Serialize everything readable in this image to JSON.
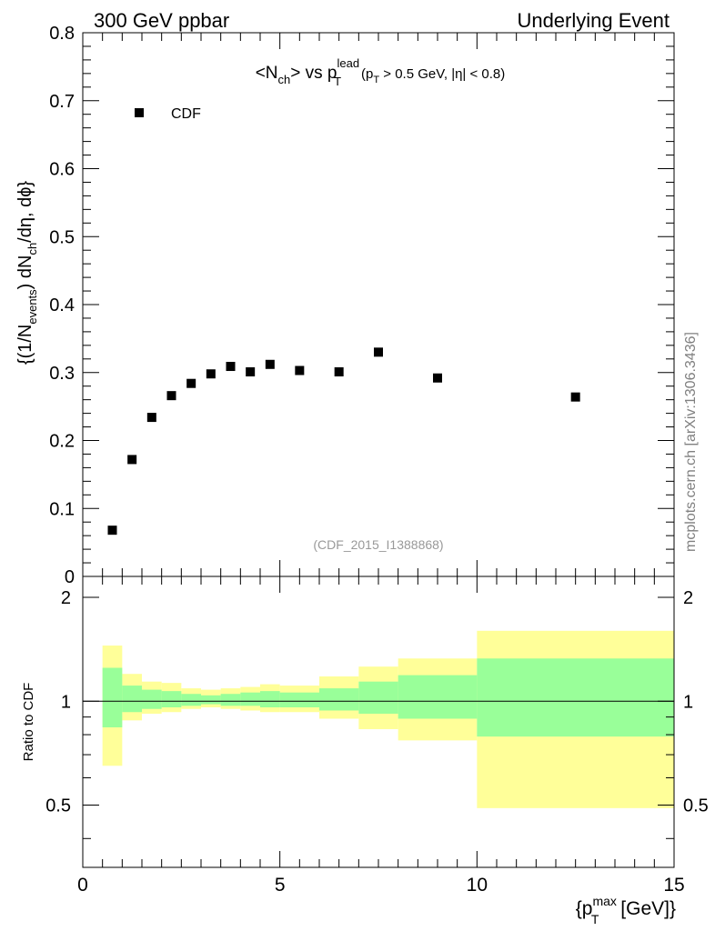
{
  "header": {
    "left": "300 GeV ppbar",
    "right": "Underlying Event"
  },
  "watermark": "mcplots.cern.ch [arXiv:1306.3436]",
  "colors": {
    "marker": "#000000",
    "band_outer": "#ffff99",
    "band_inner": "#99ff99",
    "watermark": "#808080",
    "analysis_id": "#999999"
  },
  "chart_data": [
    {
      "type": "scatter",
      "title": {
        "main_prefix": "<N",
        "main_sub": "ch",
        "main_mid": "> vs p",
        "main_sup2": "lead",
        "main_sub2": "T",
        "cut_prefix": "(p",
        "cut_sub": "T",
        "cut_rest": " > 0.5 GeV, |η| < 0.8)"
      },
      "ylabel": {
        "p1": "{(1/N",
        "p1_sub": "events",
        "p2": ") dN",
        "p2_sub": "ch",
        "p3": "/dη, dϕ}"
      },
      "analysis_id": "(CDF_2015_I1388868)",
      "legend": [
        {
          "name": "CDF",
          "position": "top-left"
        }
      ],
      "xlim": [
        0,
        15
      ],
      "ylim": [
        0,
        0.8
      ],
      "yticks": [
        {
          "v": 0,
          "label": "0"
        },
        {
          "v": 0.1,
          "label": "0.1"
        },
        {
          "v": 0.2,
          "label": "0.2"
        },
        {
          "v": 0.3,
          "label": "0.3"
        },
        {
          "v": 0.4,
          "label": "0.4"
        },
        {
          "v": 0.5,
          "label": "0.5"
        },
        {
          "v": 0.6,
          "label": "0.6"
        },
        {
          "v": 0.7,
          "label": "0.7"
        },
        {
          "v": 0.8,
          "label": "0.8"
        }
      ],
      "series": [
        {
          "name": "CDF",
          "x": [
            0.75,
            1.25,
            1.75,
            2.25,
            2.75,
            3.25,
            3.75,
            4.25,
            4.75,
            5.5,
            6.5,
            7.5,
            9.0,
            12.5
          ],
          "y": [
            0.068,
            0.172,
            0.234,
            0.266,
            0.284,
            0.298,
            0.309,
            0.301,
            0.312,
            0.303,
            0.301,
            0.33,
            0.292,
            0.264
          ]
        }
      ]
    },
    {
      "type": "area",
      "ylabel": "Ratio to CDF",
      "xlabel": {
        "p1": "{p",
        "sup": "max",
        "sub": "T",
        "p2": " [GeV]}"
      },
      "xlim": [
        0,
        15
      ],
      "ylim": [
        0.33,
        2.3
      ],
      "reference_line": 1,
      "xticks": [
        {
          "v": 0,
          "label": "0"
        },
        {
          "v": 5,
          "label": "5"
        },
        {
          "v": 10,
          "label": "10"
        },
        {
          "v": 15,
          "label": "15"
        }
      ],
      "yticks": [
        {
          "v": 0.5,
          "label": "0.5"
        },
        {
          "v": 1,
          "label": "1"
        },
        {
          "v": 2,
          "label": "2"
        }
      ],
      "bins": [
        {
          "lo": 0.5,
          "hi": 1.0,
          "outer": [
            0.65,
            1.45
          ],
          "inner": [
            0.84,
            1.25
          ]
        },
        {
          "lo": 1.0,
          "hi": 1.5,
          "outer": [
            0.88,
            1.2
          ],
          "inner": [
            0.93,
            1.11
          ]
        },
        {
          "lo": 1.5,
          "hi": 2.0,
          "outer": [
            0.92,
            1.14
          ],
          "inner": [
            0.95,
            1.08
          ]
        },
        {
          "lo": 2.0,
          "hi": 2.5,
          "outer": [
            0.93,
            1.13
          ],
          "inner": [
            0.96,
            1.07
          ]
        },
        {
          "lo": 2.5,
          "hi": 3.0,
          "outer": [
            0.95,
            1.09
          ],
          "inner": [
            0.97,
            1.05
          ]
        },
        {
          "lo": 3.0,
          "hi": 3.5,
          "outer": [
            0.96,
            1.08
          ],
          "inner": [
            0.98,
            1.04
          ]
        },
        {
          "lo": 3.5,
          "hi": 4.0,
          "outer": [
            0.95,
            1.09
          ],
          "inner": [
            0.97,
            1.05
          ]
        },
        {
          "lo": 4.0,
          "hi": 4.5,
          "outer": [
            0.94,
            1.1
          ],
          "inner": [
            0.97,
            1.06
          ]
        },
        {
          "lo": 4.5,
          "hi": 5.0,
          "outer": [
            0.93,
            1.12
          ],
          "inner": [
            0.96,
            1.07
          ]
        },
        {
          "lo": 5.0,
          "hi": 6.0,
          "outer": [
            0.93,
            1.11
          ],
          "inner": [
            0.96,
            1.06
          ]
        },
        {
          "lo": 6.0,
          "hi": 7.0,
          "outer": [
            0.89,
            1.18
          ],
          "inner": [
            0.94,
            1.09
          ]
        },
        {
          "lo": 7.0,
          "hi": 8.0,
          "outer": [
            0.83,
            1.26
          ],
          "inner": [
            0.92,
            1.14
          ]
        },
        {
          "lo": 8.0,
          "hi": 10.0,
          "outer": [
            0.77,
            1.33
          ],
          "inner": [
            0.89,
            1.19
          ]
        },
        {
          "lo": 10.0,
          "hi": 15.0,
          "outer": [
            0.49,
            1.6
          ],
          "inner": [
            0.79,
            1.33
          ]
        }
      ]
    }
  ]
}
